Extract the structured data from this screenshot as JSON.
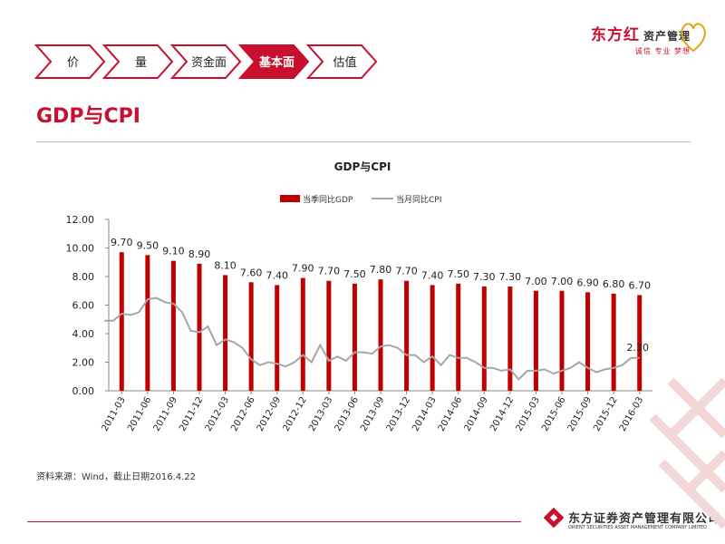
{
  "nav": {
    "tabs": [
      {
        "label": "价",
        "active": false
      },
      {
        "label": "量",
        "active": false
      },
      {
        "label": "资金面",
        "active": false
      },
      {
        "label": "基本面",
        "active": true
      },
      {
        "label": "估值",
        "active": false
      }
    ]
  },
  "brand": {
    "name": "东方红",
    "sub": "资产管理",
    "slogan": "诚信 专业 梦想"
  },
  "page": {
    "title": "GDP与CPI"
  },
  "source_note": "资料来源：Wind，截止日期2016.4.22",
  "footer": {
    "company_cn": "东方证券资产管理有限公司",
    "company_en": "ORIENT SECURITIES ASSET MANAGEMENT COMPANY LIMITED"
  },
  "colors": {
    "accent": "#c8102e",
    "bar": "#c00000",
    "line": "#a6a6a6",
    "active_tab": "#c8102e"
  },
  "chart_data": {
    "type": "bar",
    "title": "GDP与CPI",
    "xlabel": "",
    "ylabel": "",
    "ylim": [
      0,
      12
    ],
    "yticks": [
      "0.00",
      "2.00",
      "4.00",
      "6.00",
      "8.00",
      "10.00",
      "12.00"
    ],
    "legend_position": "top",
    "xtick_labels": [
      "2011-03",
      "2011-06",
      "2011-09",
      "2011-12",
      "2012-03",
      "2012-06",
      "2012-09",
      "2012-12",
      "2013-03",
      "2013-06",
      "2013-09",
      "2013-12",
      "2014-03",
      "2014-06",
      "2014-09",
      "2014-12",
      "2015-03",
      "2015-06",
      "2015-09",
      "2015-12",
      "2016-03"
    ],
    "series": [
      {
        "name": "当季同比GDP",
        "type": "bar",
        "x": [
          "2011-03",
          "2011-06",
          "2011-09",
          "2011-12",
          "2012-03",
          "2012-06",
          "2012-09",
          "2012-12",
          "2013-03",
          "2013-06",
          "2013-09",
          "2013-12",
          "2014-03",
          "2014-06",
          "2014-09",
          "2014-12",
          "2015-03",
          "2015-06",
          "2015-09",
          "2015-12",
          "2016-03"
        ],
        "values": [
          9.7,
          9.5,
          9.1,
          8.9,
          8.1,
          7.6,
          7.4,
          7.9,
          7.7,
          7.5,
          7.8,
          7.7,
          7.4,
          7.5,
          7.3,
          7.3,
          7.0,
          7.0,
          6.9,
          6.8,
          6.7
        ],
        "labels": [
          "9.70",
          "9.50",
          "9.10",
          "8.90",
          "8.10",
          "7.60",
          "7.40",
          "7.90",
          "7.70",
          "7.50",
          "7.80",
          "7.70",
          "7.40",
          "7.50",
          "7.30",
          "7.30",
          "7.00",
          "7.00",
          "6.90",
          "6.80",
          "6.70"
        ]
      },
      {
        "name": "当月同比CPI",
        "type": "line",
        "x": [
          "2011-01",
          "2011-02",
          "2011-03",
          "2011-04",
          "2011-05",
          "2011-06",
          "2011-07",
          "2011-08",
          "2011-09",
          "2011-10",
          "2011-11",
          "2011-12",
          "2012-01",
          "2012-02",
          "2012-03",
          "2012-04",
          "2012-05",
          "2012-06",
          "2012-07",
          "2012-08",
          "2012-09",
          "2012-10",
          "2012-11",
          "2012-12",
          "2013-01",
          "2013-02",
          "2013-03",
          "2013-04",
          "2013-05",
          "2013-06",
          "2013-07",
          "2013-08",
          "2013-09",
          "2013-10",
          "2013-11",
          "2013-12",
          "2014-01",
          "2014-02",
          "2014-03",
          "2014-04",
          "2014-05",
          "2014-06",
          "2014-07",
          "2014-08",
          "2014-09",
          "2014-10",
          "2014-11",
          "2014-12",
          "2015-01",
          "2015-02",
          "2015-03",
          "2015-04",
          "2015-05",
          "2015-06",
          "2015-07",
          "2015-08",
          "2015-09",
          "2015-10",
          "2015-11",
          "2015-12",
          "2016-01",
          "2016-02",
          "2016-03"
        ],
        "values": [
          4.9,
          4.9,
          5.4,
          5.3,
          5.5,
          6.4,
          6.5,
          6.2,
          6.1,
          5.5,
          4.2,
          4.1,
          4.5,
          3.2,
          3.6,
          3.4,
          3.0,
          2.2,
          1.8,
          2.0,
          1.9,
          1.7,
          2.0,
          2.5,
          2.0,
          3.2,
          2.1,
          2.4,
          2.1,
          2.7,
          2.7,
          2.6,
          3.1,
          3.2,
          3.0,
          2.5,
          2.5,
          2.0,
          2.4,
          1.8,
          2.5,
          2.3,
          2.3,
          2.0,
          1.6,
          1.6,
          1.4,
          1.5,
          0.8,
          1.4,
          1.4,
          1.5,
          1.2,
          1.4,
          1.6,
          2.0,
          1.6,
          1.3,
          1.5,
          1.6,
          1.8,
          2.3,
          2.3
        ],
        "end_label": "2.30"
      }
    ]
  }
}
